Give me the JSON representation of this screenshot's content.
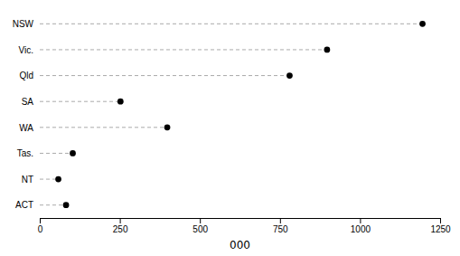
{
  "chart_data": {
    "type": "lollipop",
    "orientation": "horizontal",
    "categories": [
      "NSW",
      "Vic.",
      "Qld",
      "SA",
      "WA",
      "Tas.",
      "NT",
      "ACT"
    ],
    "values": [
      1195,
      897,
      780,
      252,
      398,
      103,
      58,
      82
    ],
    "xlabel": "000",
    "xlim": [
      0,
      1250
    ],
    "xticks": [
      0,
      250,
      500,
      750,
      1000,
      1250
    ],
    "marker": "circle",
    "line_style": "dashed",
    "color": "black",
    "grid": false
  }
}
